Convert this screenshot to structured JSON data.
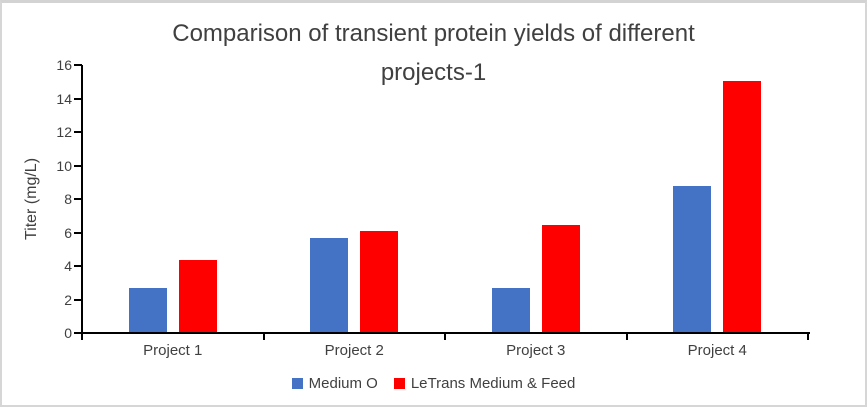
{
  "chart_data": {
    "type": "bar",
    "title": "Comparison of transient protein yields of different projects-1",
    "title_lines": [
      "Comparison of transient protein yields of different",
      "projects-1"
    ],
    "ylabel": "Titer (mg/L)",
    "xlabel": "",
    "categories": [
      "Project 1",
      "Project 2",
      "Project 3",
      "Project 4"
    ],
    "series": [
      {
        "name": "Medium O",
        "color": "#4472C4",
        "values": [
          2.6,
          5.6,
          2.6,
          8.7
        ]
      },
      {
        "name": "LeTrans Medium & Feed",
        "color": "#FF0000",
        "values": [
          4.3,
          6.0,
          6.4,
          15.0
        ]
      }
    ],
    "ylim": [
      0,
      16
    ],
    "yticks": [
      0,
      2,
      4,
      6,
      8,
      10,
      12,
      14,
      16
    ],
    "grid": false,
    "legend_position": "bottom",
    "colors": {
      "axis": "#000000",
      "text": "#404040",
      "frame_border": "#D6D6D6",
      "background": "#FFFFFF"
    }
  }
}
